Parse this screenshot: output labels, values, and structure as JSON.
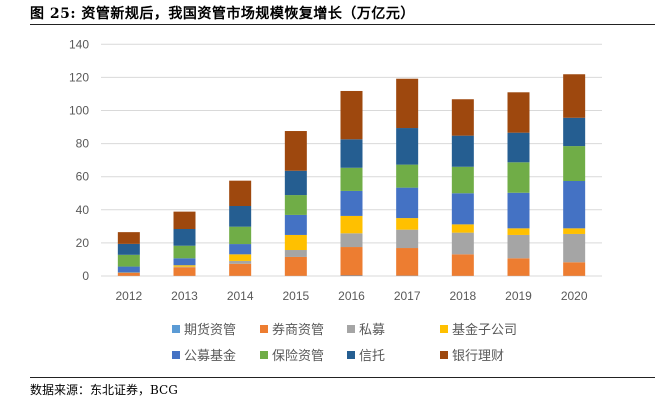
{
  "figure": {
    "title": "图  25:  资管新规后，我国资管市场规模恢复增长（万亿元）",
    "source": "数据来源：东北证券，BCG"
  },
  "chart_data": {
    "type": "bar",
    "stacked": true,
    "title": "资管新规后，我国资管市场规模恢复增长（万亿元）",
    "xlabel": "",
    "ylabel": "",
    "unit": "万亿元",
    "ylim": [
      0,
      140
    ],
    "yticks": [
      0,
      20,
      40,
      60,
      80,
      100,
      120,
      140
    ],
    "ytick_labels": [
      "0",
      "20",
      "40",
      "60",
      "80",
      "100",
      "120",
      "140"
    ],
    "grid": true,
    "legend_position": "bottom",
    "categories": [
      "2012",
      "2013",
      "2014",
      "2015",
      "2016",
      "2017",
      "2018",
      "2019",
      "2020"
    ],
    "series": [
      {
        "name": "期货资管",
        "color": "#5B9BD5",
        "values": [
          0.1,
          0.1,
          0.1,
          0.1,
          0.3,
          0.2,
          0.1,
          0.1,
          0.1
        ]
      },
      {
        "name": "券商资管",
        "color": "#ED7D31",
        "values": [
          1.8,
          5.2,
          7.3,
          11.4,
          17.2,
          16.7,
          13.0,
          10.6,
          8.2
        ]
      },
      {
        "name": "私募",
        "color": "#A5A5A5",
        "values": [
          0.1,
          0.3,
          1.7,
          4.2,
          8.3,
          11.1,
          13.1,
          14.1,
          17.1
        ]
      },
      {
        "name": "基金子公司",
        "color": "#FFC000",
        "values": [
          0.1,
          0.9,
          4.0,
          9.1,
          10.5,
          7.0,
          5.0,
          4.0,
          3.4
        ]
      },
      {
        "name": "公募基金",
        "color": "#4472C4",
        "values": [
          3.6,
          4.2,
          6.2,
          12.1,
          15.1,
          18.4,
          18.8,
          21.5,
          28.6
        ]
      },
      {
        "name": "保险资管",
        "color": "#70AD47",
        "values": [
          7.1,
          7.6,
          10.5,
          12.0,
          14.0,
          13.9,
          16.0,
          18.4,
          21.1
        ]
      },
      {
        "name": "信托",
        "color": "#255E91",
        "values": [
          6.6,
          10.1,
          12.5,
          14.7,
          17.2,
          22.1,
          18.8,
          17.9,
          17.1
        ]
      },
      {
        "name": "银行理财",
        "color": "#9E480E",
        "values": [
          7.1,
          10.5,
          15.3,
          24.0,
          29.2,
          29.8,
          22.0,
          24.4,
          26.3
        ]
      }
    ],
    "legend_order": [
      "期货资管",
      "券商资管",
      "私募",
      "基金子公司",
      "公募基金",
      "保险资管",
      "信托",
      "银行理财"
    ]
  }
}
